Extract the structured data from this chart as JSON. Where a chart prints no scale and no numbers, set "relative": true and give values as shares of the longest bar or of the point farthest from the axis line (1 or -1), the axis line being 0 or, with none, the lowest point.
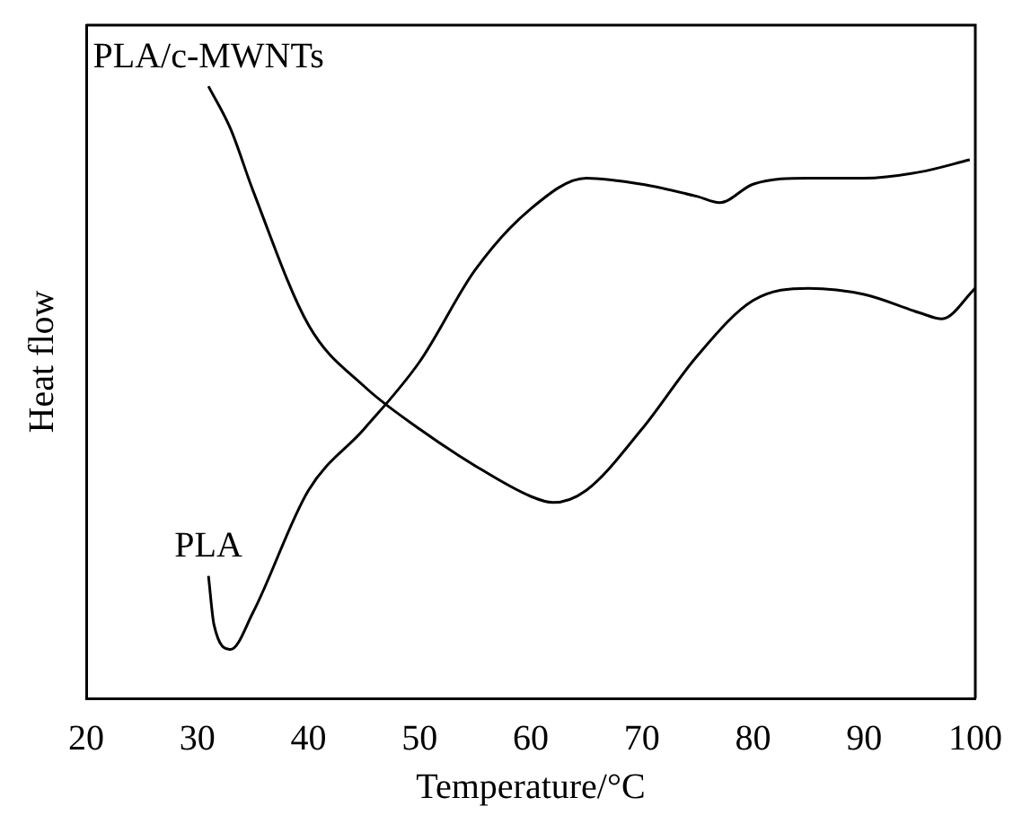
{
  "chart_data": {
    "type": "line",
    "xlabel": "Temperature/°C",
    "ylabel": "Heat flow",
    "relative": true,
    "xlim": [
      20,
      100
    ],
    "xticks": [
      20,
      30,
      40,
      50,
      60,
      70,
      80,
      90,
      100
    ],
    "tick_labels": "x",
    "grid": false,
    "legend": false,
    "marker": "none",
    "line_style": "solid",
    "series": [
      {
        "name": "PLA/c-MWNTs",
        "color": "#000000",
        "x": [
          31,
          33,
          35,
          40,
          45,
          50,
          55,
          60,
          62,
          65,
          70,
          75,
          80,
          85,
          90,
          95,
          97,
          100
        ],
        "values": [
          1.0,
          0.93,
          0.83,
          0.61,
          0.51,
          0.44,
          0.38,
          0.33,
          0.32,
          0.34,
          0.44,
          0.56,
          0.65,
          0.67,
          0.66,
          0.63,
          0.62,
          0.67
        ]
      },
      {
        "name": "PLA",
        "color": "#000000",
        "x": [
          31,
          31.5,
          33,
          35,
          40,
          45,
          50,
          55,
          60,
          65,
          70,
          75,
          77,
          80,
          85,
          90,
          95,
          99.5
        ],
        "values": [
          0.2,
          0.12,
          0.08,
          0.14,
          0.34,
          0.44,
          0.55,
          0.7,
          0.8,
          0.85,
          0.84,
          0.82,
          0.81,
          0.84,
          0.85,
          0.85,
          0.86,
          0.88
        ]
      }
    ]
  }
}
